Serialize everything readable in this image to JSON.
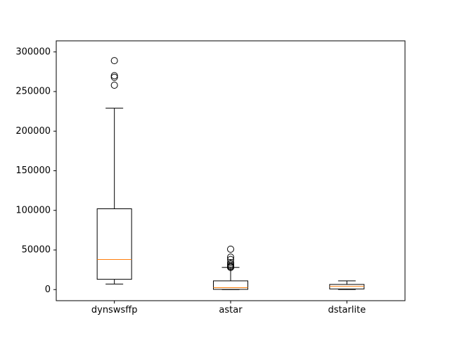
{
  "chart_data": {
    "type": "box",
    "title": "",
    "xlabel": "",
    "ylabel": "",
    "ylim": [
      -14000,
      314000
    ],
    "yticks": [
      0,
      50000,
      100000,
      150000,
      200000,
      250000,
      300000
    ],
    "ytick_labels": [
      "0",
      "50000",
      "100000",
      "150000",
      "200000",
      "250000",
      "300000"
    ],
    "categories": [
      "dynswsffp",
      "astar",
      "dstarlite"
    ],
    "boxes": [
      {
        "name": "dynswsffp",
        "whisker_low": 7000,
        "q1": 13000,
        "median": 38000,
        "q3": 102000,
        "whisker_high": 229000,
        "outliers": [
          258000,
          268000,
          270000,
          289000
        ]
      },
      {
        "name": "astar",
        "whisker_low": 0,
        "q1": 300,
        "median": 2500,
        "q3": 11000,
        "whisker_high": 28000,
        "outliers": [
          28000,
          29000,
          30000,
          32000,
          34000,
          38000,
          41000,
          51000
        ]
      },
      {
        "name": "dstarlite",
        "whisker_low": 100,
        "q1": 800,
        "median": 4000,
        "q3": 6500,
        "whisker_high": 11000,
        "outliers": []
      }
    ],
    "colors": {
      "box": "#000000",
      "median": "#ff7f0e",
      "background": "#ffffff"
    },
    "grid": false,
    "legend": "none"
  }
}
